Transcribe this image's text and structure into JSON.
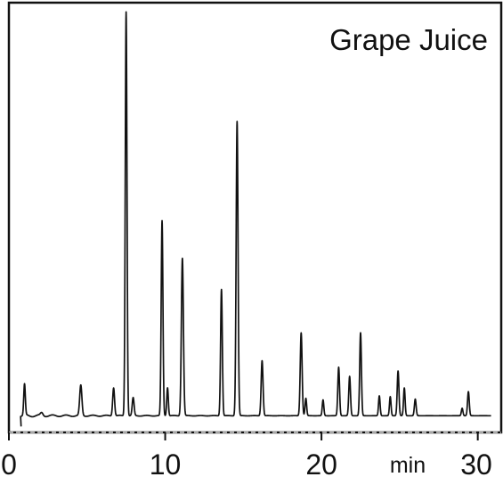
{
  "chart_data": {
    "type": "line",
    "title": "Grape Juice",
    "xlabel": "min",
    "ylabel": "",
    "xlim": [
      0,
      31.5
    ],
    "ylim": [
      0,
      100
    ],
    "x_ticks": [
      0,
      10,
      20,
      30
    ],
    "x_tick_labels": [
      "0",
      "10",
      "20",
      "30"
    ],
    "grid": false,
    "legend": "none",
    "line_color": "#111111",
    "series": [
      {
        "baseline": 0.8,
        "peaks": [
          {
            "rt": 1.0,
            "height": 7.5,
            "width": 0.05
          },
          {
            "rt": 2.1,
            "height": 0.7,
            "width": 0.08
          },
          {
            "rt": 4.6,
            "height": 7.3,
            "width": 0.07
          },
          {
            "rt": 6.7,
            "height": 6.8,
            "width": 0.06
          },
          {
            "rt": 7.5,
            "height": 97.5,
            "width": 0.055
          },
          {
            "rt": 7.95,
            "height": 4.3,
            "width": 0.06
          },
          {
            "rt": 9.8,
            "height": 47.0,
            "width": 0.055
          },
          {
            "rt": 10.15,
            "height": 6.8,
            "width": 0.05
          },
          {
            "rt": 11.1,
            "height": 38.0,
            "width": 0.065
          },
          {
            "rt": 13.6,
            "height": 30.5,
            "width": 0.055
          },
          {
            "rt": 14.6,
            "height": 71.0,
            "width": 0.06
          },
          {
            "rt": 16.2,
            "height": 13.3,
            "width": 0.06
          },
          {
            "rt": 18.7,
            "height": 20.0,
            "width": 0.06
          },
          {
            "rt": 19.0,
            "height": 4.2,
            "width": 0.05
          },
          {
            "rt": 20.1,
            "height": 3.8,
            "width": 0.05
          },
          {
            "rt": 21.1,
            "height": 11.7,
            "width": 0.055
          },
          {
            "rt": 21.8,
            "height": 9.5,
            "width": 0.055
          },
          {
            "rt": 22.5,
            "height": 20.0,
            "width": 0.055
          },
          {
            "rt": 23.7,
            "height": 4.8,
            "width": 0.05
          },
          {
            "rt": 24.4,
            "height": 4.6,
            "width": 0.05
          },
          {
            "rt": 24.9,
            "height": 10.8,
            "width": 0.055
          },
          {
            "rt": 25.3,
            "height": 6.7,
            "width": 0.05
          },
          {
            "rt": 26.0,
            "height": 4.0,
            "width": 0.055
          },
          {
            "rt": 29.0,
            "height": 1.8,
            "width": 0.05
          },
          {
            "rt": 29.4,
            "height": 5.8,
            "width": 0.055
          }
        ]
      }
    ]
  }
}
